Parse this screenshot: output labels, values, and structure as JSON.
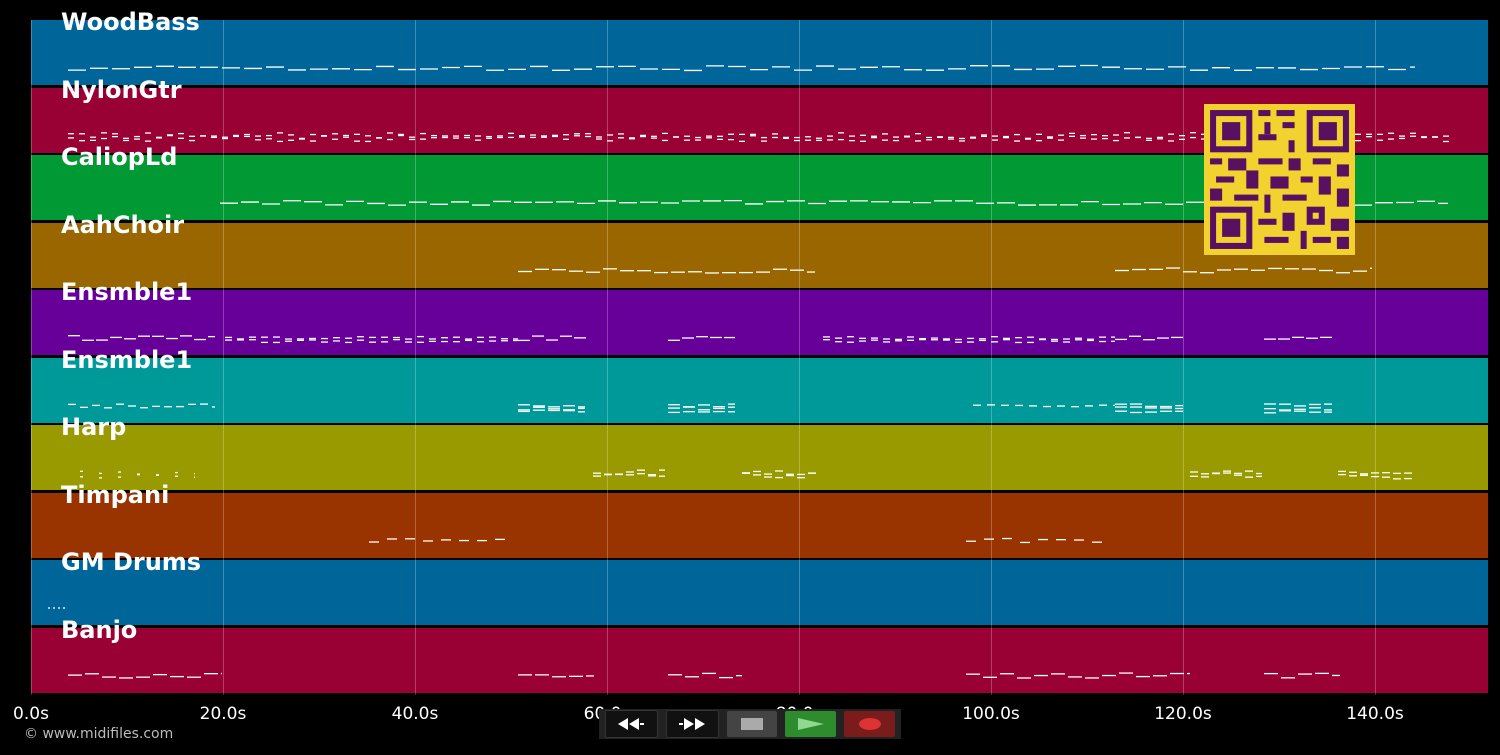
{
  "tracks": [
    {
      "name": "WoodBass",
      "color": "#00669a"
    },
    {
      "name": "NylonGtr",
      "color": "#990033"
    },
    {
      "name": "CaliopLd",
      "color": "#009933"
    },
    {
      "name": "AahChoir",
      "color": "#996600"
    },
    {
      "name": "Ensmble1",
      "color": "#660099"
    },
    {
      "name": "Ensmble1",
      "color": "#009999"
    },
    {
      "name": "Harp",
      "color": "#999900"
    },
    {
      "name": "Timpani",
      "color": "#993300"
    },
    {
      "name": "GM Drums",
      "color": "#00669a"
    },
    {
      "name": "Banjo",
      "color": "#990033"
    }
  ],
  "timeline": {
    "ticks": [
      "0.0s",
      "20.0s",
      "40.0s",
      "60.0s",
      "80.0s",
      "100.0s",
      "120.0s",
      "140.0s"
    ]
  },
  "copyright": "© www.midifiles.com",
  "transport": {
    "buttons": [
      "rewind-icon",
      "fast-forward-icon",
      "stop-icon",
      "play-icon",
      "record-icon"
    ]
  },
  "colors": {
    "qr_bg": "#f2d22e",
    "qr_fg": "#5a1060"
  }
}
